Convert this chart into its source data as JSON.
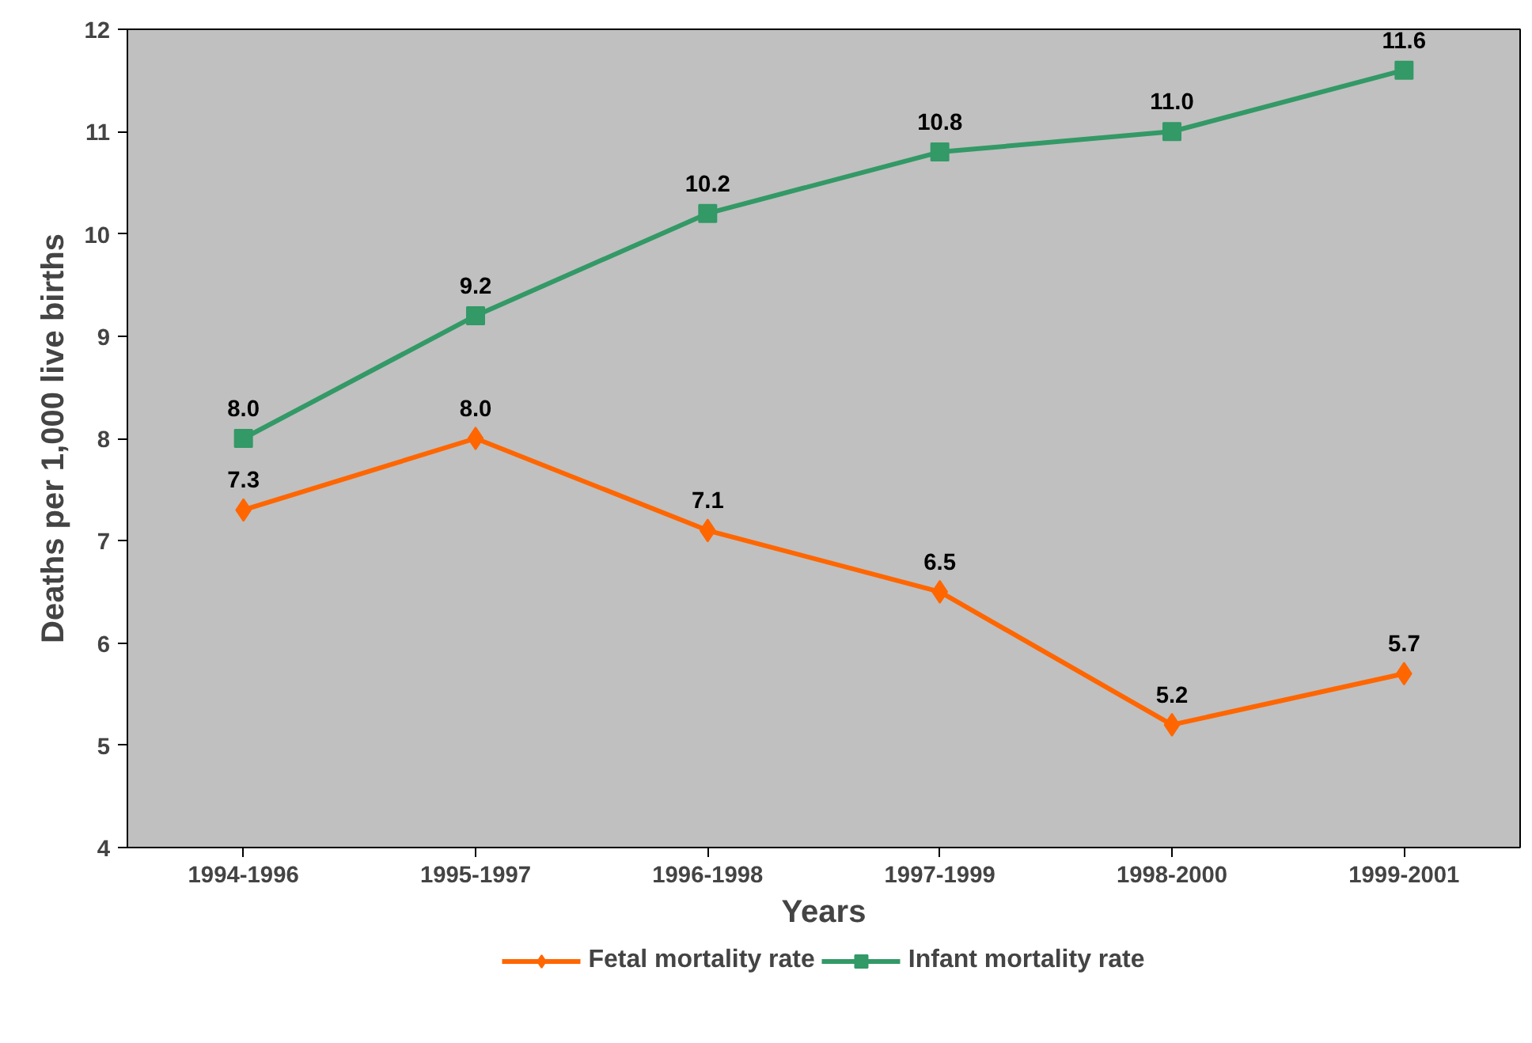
{
  "chart_data": {
    "type": "line",
    "xlabel": "Years",
    "ylabel": "Deaths per 1,000 live births",
    "categories": [
      "1994-1996",
      "1995-1997",
      "1996-1998",
      "1997-1999",
      "1998-2000",
      "1999-2001"
    ],
    "series": [
      {
        "name": "Fetal mortality rate",
        "color": "#ff6600",
        "marker": "diamond",
        "values": [
          7.3,
          8.0,
          7.1,
          6.5,
          5.2,
          5.7
        ],
        "value_labels": [
          "7.3",
          "8.0",
          "7.1",
          "6.5",
          "5.2",
          "5.7"
        ]
      },
      {
        "name": "Infant mortality rate",
        "color": "#339966",
        "marker": "square",
        "values": [
          8.0,
          9.2,
          10.2,
          10.8,
          11.0,
          11.6
        ],
        "value_labels": [
          "8.0",
          "9.2",
          "10.2",
          "10.8",
          "11.0",
          "11.6"
        ]
      }
    ],
    "ylim": [
      4,
      12
    ],
    "yticks": [
      4,
      5,
      6,
      7,
      8,
      9,
      10,
      11,
      12
    ],
    "grid": false,
    "legend": "bottom",
    "line_style": "solid"
  }
}
